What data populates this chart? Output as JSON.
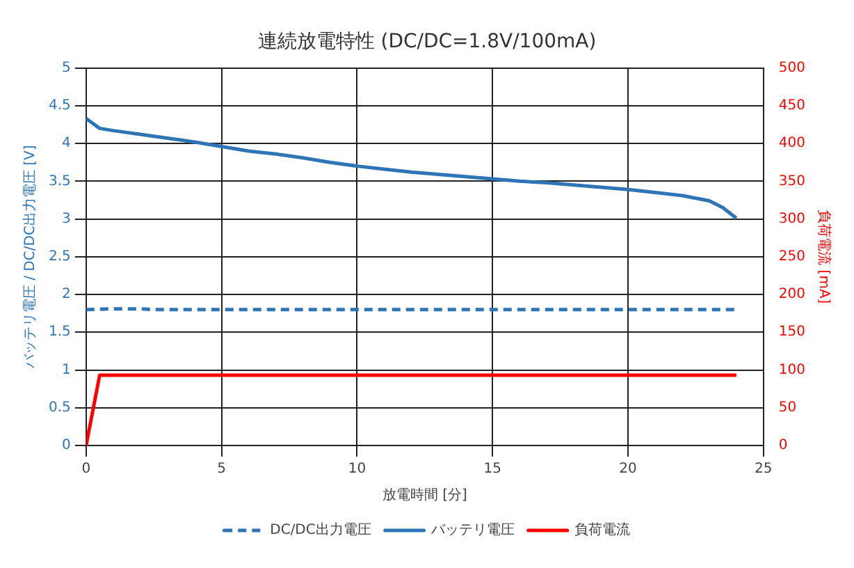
{
  "chart_data": {
    "type": "line",
    "title": "連続放電特性 (DC/DC=1.8V/100mA)",
    "xlabel": "放電時間 [分]",
    "ylabel": "バッテリ電圧 / DC/DC出力電圧 [V]",
    "y2label": "負荷電流 [mA]",
    "series": [
      {
        "name": "DC/DC出力電圧",
        "color": "#2e75b6",
        "line_style": "dashed",
        "x": [
          0,
          1,
          2,
          2.5,
          24
        ],
        "values": [
          1.8,
          1.81,
          1.81,
          1.8,
          1.8
        ]
      },
      {
        "name": "バッテリ電圧",
        "color": "#2e75b6",
        "line_style": "solid",
        "x": [
          0,
          0.5,
          1,
          2,
          3,
          4,
          5,
          6,
          7,
          8,
          9,
          10,
          11,
          12,
          13,
          14,
          15,
          16,
          17,
          18,
          19,
          20,
          21,
          22,
          23,
          23.5,
          24
        ],
        "values": [
          4.33,
          4.2,
          4.17,
          4.12,
          4.07,
          4.02,
          3.96,
          3.9,
          3.86,
          3.81,
          3.75,
          3.7,
          3.66,
          3.62,
          3.59,
          3.56,
          3.53,
          3.5,
          3.48,
          3.45,
          3.42,
          3.39,
          3.35,
          3.31,
          3.24,
          3.15,
          3.01
        ]
      },
      {
        "name": "負荷電流",
        "color": "#ff0000",
        "line_style": "solid",
        "axis": "y2",
        "x": [
          0,
          0.5,
          24
        ],
        "values": [
          0,
          93,
          93
        ]
      }
    ],
    "xlim": [
      0,
      25
    ],
    "xticks": [
      0,
      5,
      10,
      15,
      20,
      25
    ],
    "ylim": [
      0,
      5
    ],
    "yticks": [
      0,
      0.5,
      1,
      1.5,
      2,
      2.5,
      3,
      3.5,
      4,
      4.5,
      5
    ],
    "y2lim": [
      0,
      500
    ],
    "y2ticks": [
      0,
      50,
      100,
      150,
      200,
      250,
      300,
      350,
      400,
      450,
      500
    ],
    "grid": true,
    "legend": "bottom",
    "marker": "none"
  }
}
